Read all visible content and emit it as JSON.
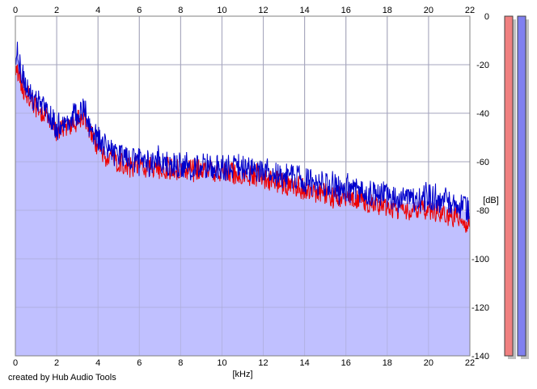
{
  "footer": {
    "credit": "created by Hub Audio Tools"
  },
  "chart_data": {
    "type": "area",
    "title": "",
    "xlabel": "[kHz]",
    "ylabel": "[dB]",
    "xlim": [
      0,
      22
    ],
    "ylim": [
      -140,
      0
    ],
    "x_ticks": [
      0,
      2,
      4,
      6,
      8,
      10,
      12,
      14,
      16,
      18,
      20,
      22
    ],
    "y_ticks": [
      0,
      -20,
      -40,
      -60,
      -80,
      -100,
      -120,
      -140
    ],
    "y_tick_labels": [
      "0",
      "-20",
      "-40",
      "-60",
      "-80",
      "-100",
      "-120",
      "-140"
    ],
    "grid": true,
    "legend": "none",
    "colors": {
      "fill": "#c0c0ff",
      "channel_red": "#ee0000",
      "channel_blue": "#0000cc",
      "grid": "#a0a0a0",
      "meter_red": "#f08080",
      "meter_blue": "#8080f0"
    },
    "series": [
      {
        "color": "#ee0000",
        "x": [
          0.1,
          0.3,
          0.6,
          1.0,
          1.4,
          2.0,
          2.5,
          3.0,
          3.3,
          3.6,
          4.0,
          4.5,
          5.0,
          5.5,
          6.0,
          7.0,
          8.0,
          9.0,
          10.0,
          11.0,
          12.0,
          13.0,
          14.0,
          15.0,
          16.0,
          17.0,
          18.0,
          19.0,
          20.0,
          21.0,
          22.0
        ],
        "values": [
          -22,
          -28,
          -32,
          -37,
          -40,
          -48,
          -45,
          -43,
          -40,
          -48,
          -53,
          -58,
          -60,
          -62,
          -61,
          -62,
          -63,
          -63,
          -64,
          -65,
          -66,
          -69,
          -71,
          -73,
          -74,
          -76,
          -78,
          -80,
          -79,
          -82,
          -84
        ]
      },
      {
        "color": "#0000cc",
        "x": [
          0.1,
          0.3,
          0.6,
          1.0,
          1.4,
          2.0,
          2.5,
          3.0,
          3.3,
          3.6,
          4.0,
          4.5,
          5.0,
          5.5,
          6.0,
          7.0,
          8.0,
          9.0,
          10.0,
          11.0,
          12.0,
          13.0,
          14.0,
          15.0,
          16.0,
          17.0,
          18.0,
          19.0,
          20.0,
          21.0,
          22.0
        ],
        "values": [
          -15,
          -22,
          -30,
          -35,
          -38,
          -45,
          -42,
          -40,
          -37,
          -45,
          -50,
          -55,
          -57,
          -59,
          -59,
          -60,
          -61,
          -61,
          -62,
          -62,
          -63,
          -65,
          -67,
          -69,
          -71,
          -72,
          -74,
          -75,
          -74,
          -77,
          -79
        ]
      }
    ]
  },
  "meters": {
    "left_level": 1.0,
    "right_level": 1.0
  }
}
